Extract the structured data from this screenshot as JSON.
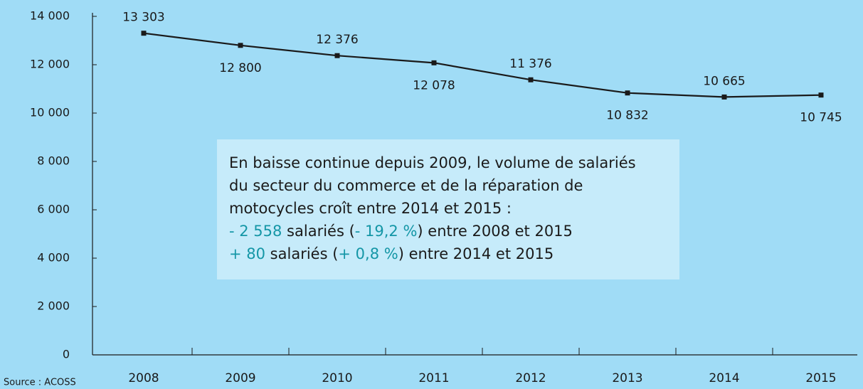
{
  "chart_data": {
    "type": "line",
    "categories": [
      "2008",
      "2009",
      "2010",
      "2011",
      "2012",
      "2013",
      "2014",
      "2015"
    ],
    "series": [
      {
        "color": "#1a1a1a",
        "values": [
          13303,
          12800,
          12376,
          12078,
          11376,
          10832,
          10665,
          10745
        ],
        "value_labels": [
          "13 303",
          "12 800",
          "12 376",
          "12 078",
          "11 376",
          "10 832",
          "10 665",
          "10 745"
        ]
      }
    ],
    "ylim": [
      0,
      14000
    ],
    "yticks": [
      0,
      {
        "value": 2000,
        "label": "2 000"
      },
      {
        "value": 4000,
        "label": "4 000"
      },
      {
        "value": 6000,
        "label": "6 000"
      },
      {
        "value": 8000,
        "label": "8 000"
      },
      {
        "value": 10000,
        "label": "10 000"
      },
      {
        "value": 12000,
        "label": "12 000"
      },
      {
        "value": 14000,
        "label": "14 000"
      }
    ],
    "annotation": [
      [
        {
          "text": "En baisse continue depuis 2009, le volume de salariés",
          "color": "#1a1a1a"
        }
      ],
      [
        {
          "text": "du secteur du commerce et de la réparation de",
          "color": "#1a1a1a"
        }
      ],
      [
        {
          "text": "motocycles croît entre 2014 et 2015 :",
          "color": "#1a1a1a"
        }
      ],
      [
        {
          "text": "- 2 558",
          "color": "#1496a6"
        },
        {
          "text": " salariés (",
          "color": "#1a1a1a"
        },
        {
          "text": "- 19,2 %",
          "color": "#1496a6"
        },
        {
          "text": ") entre 2008 et 2015",
          "color": "#1a1a1a"
        }
      ],
      [
        {
          "text": "+ 80",
          "color": "#1496a6"
        },
        {
          "text": " salariés (",
          "color": "#1a1a1a"
        },
        {
          "text": "+ 0,8 %",
          "color": "#1496a6"
        },
        {
          "text": ") entre 2014 et 2015",
          "color": "#1a1a1a"
        }
      ]
    ],
    "source": "Source : ACOSS"
  }
}
